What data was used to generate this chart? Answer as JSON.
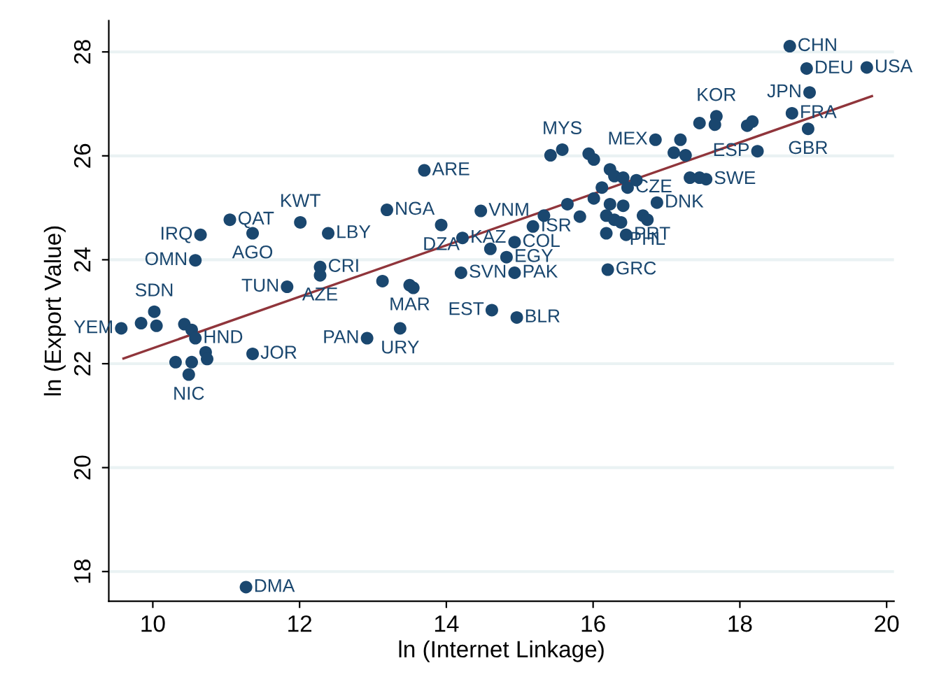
{
  "chart_data": {
    "type": "scatter",
    "xlabel": "ln (Internet Linkage)",
    "ylabel": "ln (Export Value)",
    "xlim": [
      9.4,
      20.1
    ],
    "ylim": [
      17.43,
      28.6
    ],
    "xticks": [
      10,
      12,
      14,
      16,
      18,
      20
    ],
    "yticks": [
      18,
      20,
      22,
      24,
      26,
      28
    ],
    "grid": "y",
    "marker": "circle",
    "series": [
      {
        "color": "#1a476f",
        "x": [
          19.73,
          18.68,
          18.91,
          18.95,
          18.71,
          18.93,
          18.24,
          17.68,
          17.66,
          18.17,
          18.1,
          17.45,
          16.85,
          17.19,
          17.1,
          17.26,
          17.32,
          17.45,
          17.54,
          16.12,
          16.01,
          16.23,
          16.29,
          16.41,
          16.47,
          16.59,
          16.87,
          16.23,
          16.41,
          15.65,
          15.82,
          16.18,
          16.29,
          16.38,
          16.68,
          16.74,
          16.18,
          16.45,
          16.2,
          15.42,
          15.58,
          15.94,
          16.01,
          15.33,
          13.7,
          13.19,
          14.47,
          13.93,
          14.22,
          14.93,
          14.82,
          14.6,
          14.2,
          14.93,
          13.13,
          13.5,
          13.55,
          14.62,
          14.96,
          13.37,
          12.92,
          15.18,
          11.05,
          10.65,
          11.36,
          12.01,
          12.39,
          10.58,
          12.28,
          12.28,
          11.83,
          10.02,
          9.57,
          9.84,
          10.05,
          10.43,
          10.53,
          10.58,
          10.72,
          11.36,
          10.31,
          10.53,
          10.49,
          10.74,
          11.27
        ],
        "values": [
          27.7,
          28.11,
          27.68,
          27.22,
          26.82,
          26.52,
          26.09,
          26.76,
          26.6,
          26.66,
          26.58,
          26.63,
          26.31,
          26.31,
          26.06,
          26.01,
          25.58,
          25.58,
          25.55,
          25.39,
          25.18,
          25.74,
          25.61,
          25.58,
          25.39,
          25.53,
          25.1,
          25.07,
          25.04,
          25.07,
          24.83,
          24.85,
          24.77,
          24.72,
          24.85,
          24.77,
          24.51,
          24.48,
          23.81,
          26.01,
          26.12,
          26.04,
          25.93,
          24.85,
          25.72,
          24.96,
          24.94,
          24.67,
          24.42,
          24.34,
          24.05,
          24.21,
          23.75,
          23.75,
          23.59,
          23.51,
          23.46,
          23.03,
          22.89,
          22.68,
          22.49,
          24.64,
          24.77,
          24.48,
          24.51,
          24.72,
          24.51,
          23.99,
          23.86,
          23.7,
          23.48,
          23.0,
          22.68,
          22.78,
          22.73,
          22.76,
          22.65,
          22.49,
          22.22,
          22.19,
          22.03,
          22.03,
          21.79,
          22.09,
          17.7
        ]
      },
      {
        "type": "line",
        "marker": "none",
        "color": "#90353b",
        "x": [
          9.6,
          19.8
        ],
        "values": [
          22.1,
          27.15
        ]
      }
    ],
    "annotations": [
      {
        "text": "USA",
        "x": 19.73,
        "y": 27.7
      },
      {
        "text": "CHN",
        "x": 18.68,
        "y": 28.11
      },
      {
        "text": "DEU",
        "x": 18.91,
        "y": 27.68
      },
      {
        "text": "JPN",
        "x": 18.95,
        "y": 27.22
      },
      {
        "text": "FRA",
        "x": 18.71,
        "y": 26.82
      },
      {
        "text": "GBR",
        "x": 18.93,
        "y": 26.52
      },
      {
        "text": "ESP",
        "x": 18.24,
        "y": 26.09
      },
      {
        "text": "KOR",
        "x": 17.68,
        "y": 26.76
      },
      {
        "text": "MEX",
        "x": 16.85,
        "y": 26.31
      },
      {
        "text": "SWE",
        "x": 17.54,
        "y": 25.55
      },
      {
        "text": "CZE",
        "x": 16.47,
        "y": 25.39
      },
      {
        "text": "DNK",
        "x": 16.87,
        "y": 25.1
      },
      {
        "text": "PHL",
        "x": 16.74,
        "y": 24.77
      },
      {
        "text": "PRT",
        "x": 16.45,
        "y": 24.48
      },
      {
        "text": "GRC",
        "x": 16.2,
        "y": 23.81
      },
      {
        "text": "MYS",
        "x": 15.58,
        "y": 26.12
      },
      {
        "text": "ARE",
        "x": 13.7,
        "y": 25.72
      },
      {
        "text": "NGA",
        "x": 13.19,
        "y": 24.96
      },
      {
        "text": "VNM",
        "x": 14.47,
        "y": 24.94
      },
      {
        "text": "DZA",
        "x": 13.93,
        "y": 24.67
      },
      {
        "text": "KAZ",
        "x": 14.22,
        "y": 24.42
      },
      {
        "text": "COL",
        "x": 14.93,
        "y": 24.34
      },
      {
        "text": "EGY",
        "x": 14.82,
        "y": 24.05
      },
      {
        "text": "SVN",
        "x": 14.2,
        "y": 23.75
      },
      {
        "text": "PAK",
        "x": 14.93,
        "y": 23.75
      },
      {
        "text": "MAR",
        "x": 13.5,
        "y": 23.51
      },
      {
        "text": "EST",
        "x": 14.62,
        "y": 23.03
      },
      {
        "text": "BLR",
        "x": 14.96,
        "y": 22.89
      },
      {
        "text": "URY",
        "x": 13.37,
        "y": 22.68
      },
      {
        "text": "PAN",
        "x": 12.92,
        "y": 22.49
      },
      {
        "text": "ISR",
        "x": 15.18,
        "y": 24.64
      },
      {
        "text": "QAT",
        "x": 11.05,
        "y": 24.77
      },
      {
        "text": "IRQ",
        "x": 10.65,
        "y": 24.48
      },
      {
        "text": "AGO",
        "x": 11.36,
        "y": 24.51
      },
      {
        "text": "KWT",
        "x": 12.01,
        "y": 24.72
      },
      {
        "text": "LBY",
        "x": 12.39,
        "y": 24.51
      },
      {
        "text": "OMN",
        "x": 10.58,
        "y": 23.99
      },
      {
        "text": "CRI",
        "x": 12.28,
        "y": 23.86
      },
      {
        "text": "AZE",
        "x": 12.28,
        "y": 23.7
      },
      {
        "text": "TUN",
        "x": 11.83,
        "y": 23.48
      },
      {
        "text": "SDN",
        "x": 10.02,
        "y": 23.0
      },
      {
        "text": "YEM",
        "x": 9.57,
        "y": 22.68
      },
      {
        "text": "HND",
        "x": 10.58,
        "y": 22.49
      },
      {
        "text": "JOR",
        "x": 11.36,
        "y": 22.19
      },
      {
        "text": "NIC",
        "x": 10.49,
        "y": 21.79
      },
      {
        "text": "DMA",
        "x": 11.27,
        "y": 17.7
      }
    ]
  }
}
